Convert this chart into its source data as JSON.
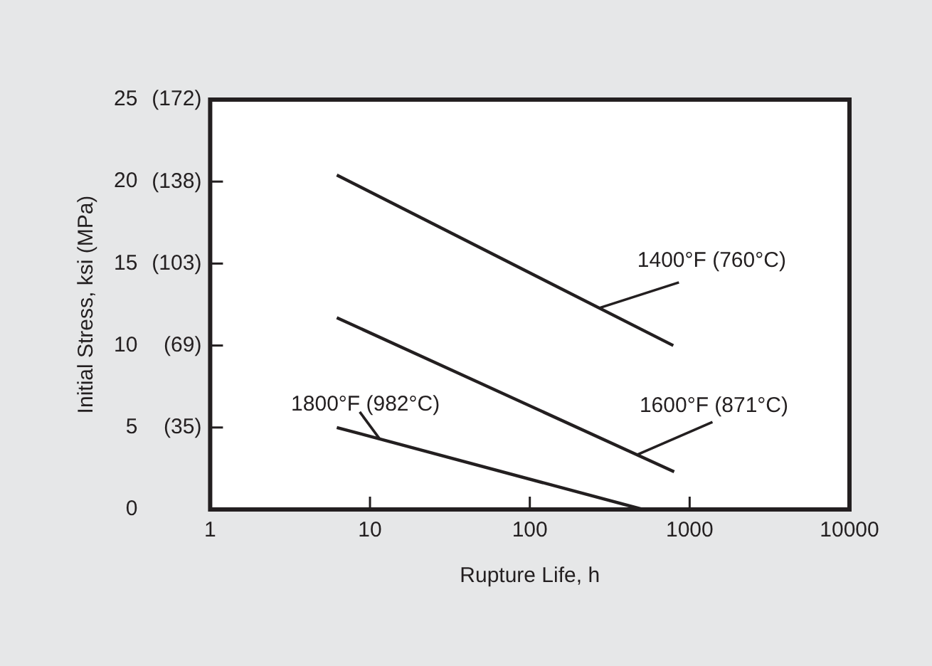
{
  "chart_data": {
    "type": "line",
    "xlabel": "Rupture Life, h",
    "ylabel": "Initial Stress, ksi (MPa)",
    "log": "x",
    "xlim": [
      1,
      10000
    ],
    "xticks": [
      1,
      10,
      100,
      1000,
      10000
    ],
    "ylim": [
      0,
      25
    ],
    "yticks": [
      0,
      5,
      10,
      15,
      20,
      25
    ],
    "y2lim": [
      0,
      172.4
    ],
    "y2ticks": [
      {
        "value": 34.5,
        "label": "(35)"
      },
      {
        "value": 68.9,
        "label": "(69)"
      },
      {
        "value": 103.4,
        "label": "(103)"
      },
      {
        "value": 137.9,
        "label": "(138)"
      },
      {
        "value": 172.4,
        "label": "(172)"
      }
    ],
    "grid": false,
    "legend": false,
    "marker": "none",
    "line_style": "solid",
    "series": [
      {
        "name": "1400°F (760°C)",
        "color": "#231f20",
        "x": [
          6.2,
          790
        ],
        "values": [
          20.4,
          10.0
        ]
      },
      {
        "name": "1600°F (871°C)",
        "color": "#231f20",
        "x": [
          6.2,
          800
        ],
        "values": [
          11.7,
          2.3
        ]
      },
      {
        "name": "1800°F (982°C)",
        "color": "#231f20",
        "x": [
          6.2,
          510
        ],
        "values": [
          5.0,
          0
        ]
      }
    ]
  }
}
